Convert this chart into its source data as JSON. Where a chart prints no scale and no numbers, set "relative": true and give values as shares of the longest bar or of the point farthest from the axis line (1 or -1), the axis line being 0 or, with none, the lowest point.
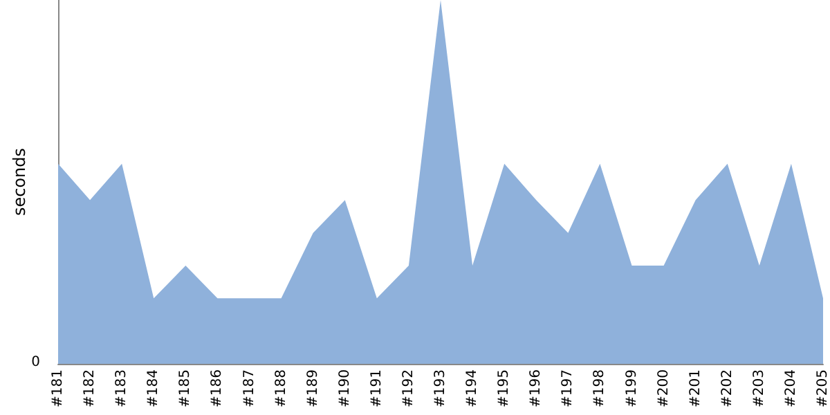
{
  "chart_data": {
    "type": "area",
    "ylabel": "seconds",
    "relative": true,
    "annotations": [
      "0"
    ],
    "categories": [
      "#181",
      "#182",
      "#183",
      "#184",
      "#185",
      "#186",
      "#187",
      "#188",
      "#189",
      "#190",
      "#191",
      "#192",
      "#193",
      "#194",
      "#195",
      "#196",
      "#197",
      "#198",
      "#199",
      "#200",
      "#201",
      "#202",
      "#203",
      "#204",
      "#205"
    ],
    "series": [
      {
        "color": "#8fb1db",
        "values": [
          0.55,
          0.45,
          0.55,
          0.18,
          0.27,
          0.18,
          0.18,
          0.18,
          0.36,
          0.45,
          0.18,
          0.27,
          1,
          0.27,
          0.55,
          0.45,
          0.36,
          0.55,
          0.27,
          0.27,
          0.45,
          0.55,
          0.27,
          0.55,
          0.18
        ]
      }
    ],
    "grid": false
  }
}
